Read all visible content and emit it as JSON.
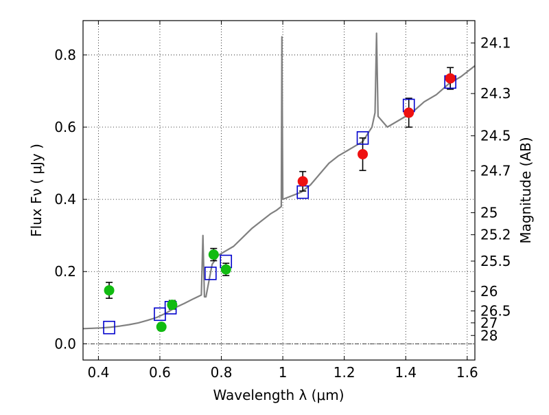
{
  "chart_data": {
    "type": "scatter",
    "title": "",
    "xlabel": "Wavelength  λ (μm)",
    "ylabel_left": "Flux  Fν  ( μJy )",
    "ylabel_right": "Magnitude (AB)",
    "xlim": [
      0.35,
      1.625
    ],
    "ylim": [
      -0.045,
      0.895
    ],
    "grid": true,
    "x_ticks": [
      0.4,
      0.6,
      0.8,
      1.0,
      1.2,
      1.4,
      1.6
    ],
    "x_tick_labels": [
      "0.4",
      "0.6",
      "0.8",
      "1",
      "1.2",
      "1.4",
      "1.6"
    ],
    "y_ticks": [
      0.0,
      0.2,
      0.4,
      0.6,
      0.8
    ],
    "y_tick_labels": [
      "0.0",
      "0.2",
      "0.4",
      "0.6",
      "0.8"
    ],
    "right_ticks": [
      {
        "label": "24.1",
        "flux": 0.833
      },
      {
        "label": "24.3",
        "flux": 0.693
      },
      {
        "label": "24.5",
        "flux": 0.576
      },
      {
        "label": "24.7",
        "flux": 0.479
      },
      {
        "label": "25",
        "flux": 0.363
      },
      {
        "label": "25.2",
        "flux": 0.302
      },
      {
        "label": "25.5",
        "flux": 0.229
      },
      {
        "label": "26",
        "flux": 0.145
      },
      {
        "label": "26.5",
        "flux": 0.091
      },
      {
        "label": "27",
        "flux": 0.058
      },
      {
        "label": "28",
        "flux": 0.023
      }
    ],
    "spectrum": {
      "color": "#808080",
      "points": [
        [
          0.35,
          0.042
        ],
        [
          0.38,
          0.043
        ],
        [
          0.41,
          0.044
        ],
        [
          0.44,
          0.046
        ],
        [
          0.47,
          0.049
        ],
        [
          0.5,
          0.053
        ],
        [
          0.53,
          0.058
        ],
        [
          0.56,
          0.065
        ],
        [
          0.59,
          0.073
        ],
        [
          0.62,
          0.085
        ],
        [
          0.65,
          0.1
        ],
        [
          0.68,
          0.112
        ],
        [
          0.71,
          0.125
        ],
        [
          0.735,
          0.135
        ],
        [
          0.74,
          0.3
        ],
        [
          0.745,
          0.13
        ],
        [
          0.75,
          0.13
        ],
        [
          0.77,
          0.22
        ],
        [
          0.79,
          0.245
        ],
        [
          0.81,
          0.255
        ],
        [
          0.84,
          0.27
        ],
        [
          0.87,
          0.295
        ],
        [
          0.9,
          0.32
        ],
        [
          0.93,
          0.34
        ],
        [
          0.96,
          0.36
        ],
        [
          0.98,
          0.37
        ],
        [
          0.995,
          0.38
        ],
        [
          0.997,
          0.85
        ],
        [
          1.0,
          0.4
        ],
        [
          1.03,
          0.41
        ],
        [
          1.06,
          0.42
        ],
        [
          1.09,
          0.44
        ],
        [
          1.12,
          0.47
        ],
        [
          1.15,
          0.5
        ],
        [
          1.18,
          0.52
        ],
        [
          1.22,
          0.54
        ],
        [
          1.26,
          0.56
        ],
        [
          1.29,
          0.6
        ],
        [
          1.3,
          0.64
        ],
        [
          1.305,
          0.86
        ],
        [
          1.31,
          0.63
        ],
        [
          1.34,
          0.6
        ],
        [
          1.38,
          0.62
        ],
        [
          1.42,
          0.64
        ],
        [
          1.46,
          0.67
        ],
        [
          1.5,
          0.69
        ],
        [
          1.54,
          0.72
        ],
        [
          1.58,
          0.74
        ],
        [
          1.625,
          0.77
        ]
      ]
    },
    "model_points": {
      "marker": "open-square",
      "color": "#0000cc",
      "x": [
        0.435,
        0.6,
        0.635,
        0.765,
        0.815,
        1.065,
        1.26,
        1.41,
        1.545
      ],
      "y": [
        0.045,
        0.082,
        0.1,
        0.195,
        0.228,
        0.42,
        0.57,
        0.66,
        0.725
      ]
    },
    "observed_optical": {
      "marker": "filled-circle",
      "color": "#11bb11",
      "x": [
        0.435,
        0.605,
        0.64,
        0.775,
        0.815
      ],
      "y": [
        0.148,
        0.047,
        0.108,
        0.247,
        0.206
      ],
      "yerr": [
        0.022,
        0.01,
        0.012,
        0.017,
        0.017
      ]
    },
    "observed_nir": {
      "marker": "filled-circle",
      "color": "#ee1111",
      "x": [
        1.065,
        1.26,
        1.41,
        1.545
      ],
      "y": [
        0.45,
        0.525,
        0.64,
        0.735
      ],
      "yerr": [
        0.027,
        0.045,
        0.04,
        0.03
      ]
    }
  }
}
